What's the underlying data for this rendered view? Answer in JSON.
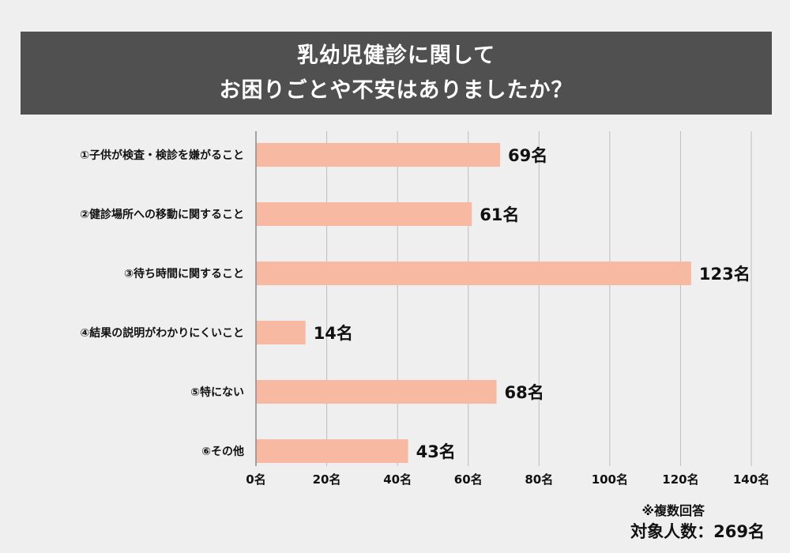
{
  "title_line1": "乳幼児健診に関して",
  "title_line2": "お困りごとや不安はありましたか？",
  "note": "※複数回答",
  "total": "対象人数：269名",
  "colors": {
    "bar": "#f8b9a3",
    "title_bg": "#505050",
    "background": "#efefef",
    "grid": "#bdbdbd"
  },
  "chart_data": {
    "type": "bar",
    "orientation": "horizontal",
    "categories": [
      "①子供が検査・検診を嫌がること",
      "②健診場所への移動に関すること",
      "③待ち時間に関すること",
      "④結果の説明がわかりにくいこと",
      "⑤特にない",
      "⑥その他"
    ],
    "values": [
      69,
      61,
      123,
      14,
      68,
      43
    ],
    "value_labels": [
      "69名",
      "61名",
      "123名",
      "14名",
      "68名",
      "43名"
    ],
    "xlim": [
      0,
      140
    ],
    "x_ticks": [
      0,
      20,
      40,
      60,
      80,
      100,
      120,
      140
    ],
    "x_tick_labels": [
      "0名",
      "20名",
      "40名",
      "60名",
      "80名",
      "100名",
      "120名",
      "140名"
    ],
    "grid": true
  }
}
